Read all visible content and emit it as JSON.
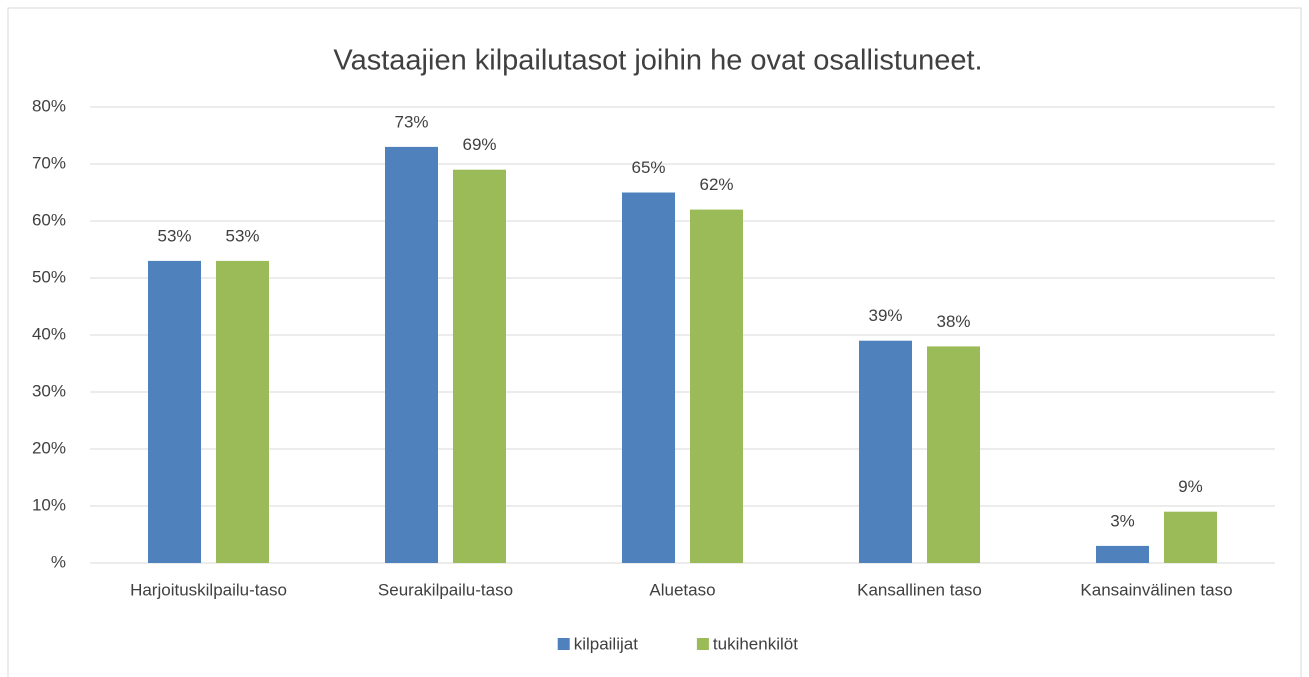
{
  "chart_data": {
    "type": "bar",
    "title": "Vastaajien kilpailutasot joihin he ovat osallistuneet.",
    "categories": [
      "Harjoituskilpailu-taso",
      "Seurakilpailu-taso",
      "Aluetaso",
      "Kansallinen taso",
      "Kansainvälinen taso"
    ],
    "series": [
      {
        "name": "kilpailijat",
        "color": "#4f81bd",
        "values": [
          53,
          73,
          65,
          39,
          3
        ],
        "value_labels": [
          "53%",
          "73%",
          "65%",
          "39%",
          "3%"
        ]
      },
      {
        "name": "tukihenkilöt",
        "color": "#9bbb59",
        "values": [
          53,
          69,
          62,
          38,
          9
        ],
        "value_labels": [
          "53%",
          "69%",
          "62%",
          "38%",
          "9%"
        ]
      }
    ],
    "ylim": [
      0,
      80
    ],
    "yticks": [
      {
        "value": 0,
        "label": "%"
      },
      {
        "value": 10,
        "label": "10%"
      },
      {
        "value": 20,
        "label": "20%"
      },
      {
        "value": 30,
        "label": "30%"
      },
      {
        "value": 40,
        "label": "40%"
      },
      {
        "value": 50,
        "label": "50%"
      },
      {
        "value": 60,
        "label": "60%"
      },
      {
        "value": 70,
        "label": "70%"
      },
      {
        "value": 80,
        "label": "80%"
      }
    ],
    "grid": true,
    "legend": "bottom"
  }
}
